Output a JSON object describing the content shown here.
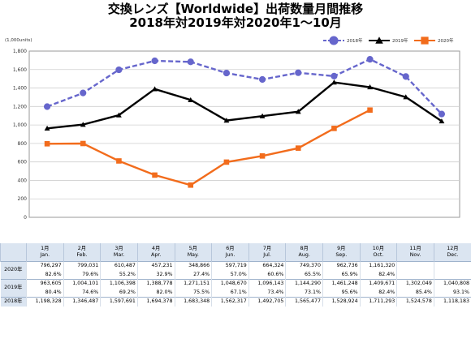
{
  "title_line1": "交換レンズ【Worldwide】出荷数量月間推移",
  "title_line2": "2018年対2019年対2020年1～10月",
  "chart_data": {
    "type": "line",
    "title": "交換レンズ【Worldwide】出荷数量月間推移 2018年対2019年対2020年1～10月",
    "unit_label": "(1,000units)",
    "ylim": [
      0,
      1800
    ],
    "yticks": [
      "0",
      "200",
      "400",
      "600",
      "800",
      "1,000",
      "1,200",
      "1,400",
      "1,600",
      "1,800"
    ],
    "categories": [
      "1月",
      "2月",
      "3月",
      "4月",
      "5月",
      "6月",
      "7月",
      "8月",
      "9月",
      "10月",
      "11月",
      "12月"
    ],
    "grid": true,
    "legend_position": "top-right",
    "series": [
      {
        "name": "2018年",
        "color": "#6666cc",
        "dash": true,
        "marker": "circle",
        "values": [
          1198.328,
          1346.487,
          1597.691,
          1694.378,
          1683.348,
          1562.317,
          1492.705,
          1565.477,
          1528.924,
          1711.293,
          1524.578,
          1118.183
        ]
      },
      {
        "name": "2019年",
        "color": "#000000",
        "dash": false,
        "marker": "triangle",
        "values": [
          963.605,
          1004.101,
          1106.398,
          1388.778,
          1271.151,
          1048.67,
          1096.143,
          1144.29,
          1461.248,
          1409.671,
          1302.049,
          1040.808
        ]
      },
      {
        "name": "2020年",
        "color": "#f26c1c",
        "dash": false,
        "marker": "square",
        "values": [
          796.297,
          799.031,
          610.487,
          457.231,
          348.866,
          597.719,
          664.324,
          749.37,
          962.736,
          1161.32,
          null,
          null
        ]
      }
    ]
  },
  "table": {
    "months": [
      {
        "jp": "1月",
        "en": "Jan."
      },
      {
        "jp": "2月",
        "en": "Feb."
      },
      {
        "jp": "3月",
        "en": "Mar."
      },
      {
        "jp": "4月",
        "en": "Apr."
      },
      {
        "jp": "5月",
        "en": "May."
      },
      {
        "jp": "6月",
        "en": "Jun."
      },
      {
        "jp": "7月",
        "en": "Jul."
      },
      {
        "jp": "8月",
        "en": "Aug."
      },
      {
        "jp": "9月",
        "en": "Sep."
      },
      {
        "jp": "10月",
        "en": "Oct."
      },
      {
        "jp": "11月",
        "en": "Nov."
      },
      {
        "jp": "12月",
        "en": "Dec."
      }
    ],
    "rows": [
      {
        "label": "2020年",
        "values": [
          "796,297",
          "799,031",
          "610,487",
          "457,231",
          "348,866",
          "597,719",
          "664,324",
          "749,370",
          "962,736",
          "1,161,320",
          "",
          ""
        ],
        "pct": [
          "82.6%",
          "79.6%",
          "55.2%",
          "32.9%",
          "27.4%",
          "57.0%",
          "60.6%",
          "65.5%",
          "65.9%",
          "82.4%",
          "",
          ""
        ]
      },
      {
        "label": "2019年",
        "values": [
          "963,605",
          "1,004,101",
          "1,106,398",
          "1,388,778",
          "1,271,151",
          "1,048,670",
          "1,096,143",
          "1,144,290",
          "1,461,248",
          "1,409,671",
          "1,302,049",
          "1,040,808"
        ],
        "pct": [
          "80.4%",
          "74.6%",
          "69.2%",
          "82.0%",
          "75.5%",
          "67.1%",
          "73.4%",
          "73.1%",
          "95.6%",
          "82.4%",
          "85.4%",
          "93.1%"
        ]
      },
      {
        "label": "2018年",
        "values": [
          "1,198,328",
          "1,346,487",
          "1,597,691",
          "1,694,378",
          "1,683,348",
          "1,562,317",
          "1,492,705",
          "1,565,477",
          "1,528,924",
          "1,711,293",
          "1,524,578",
          "1,118,183"
        ],
        "pct": null
      }
    ]
  }
}
